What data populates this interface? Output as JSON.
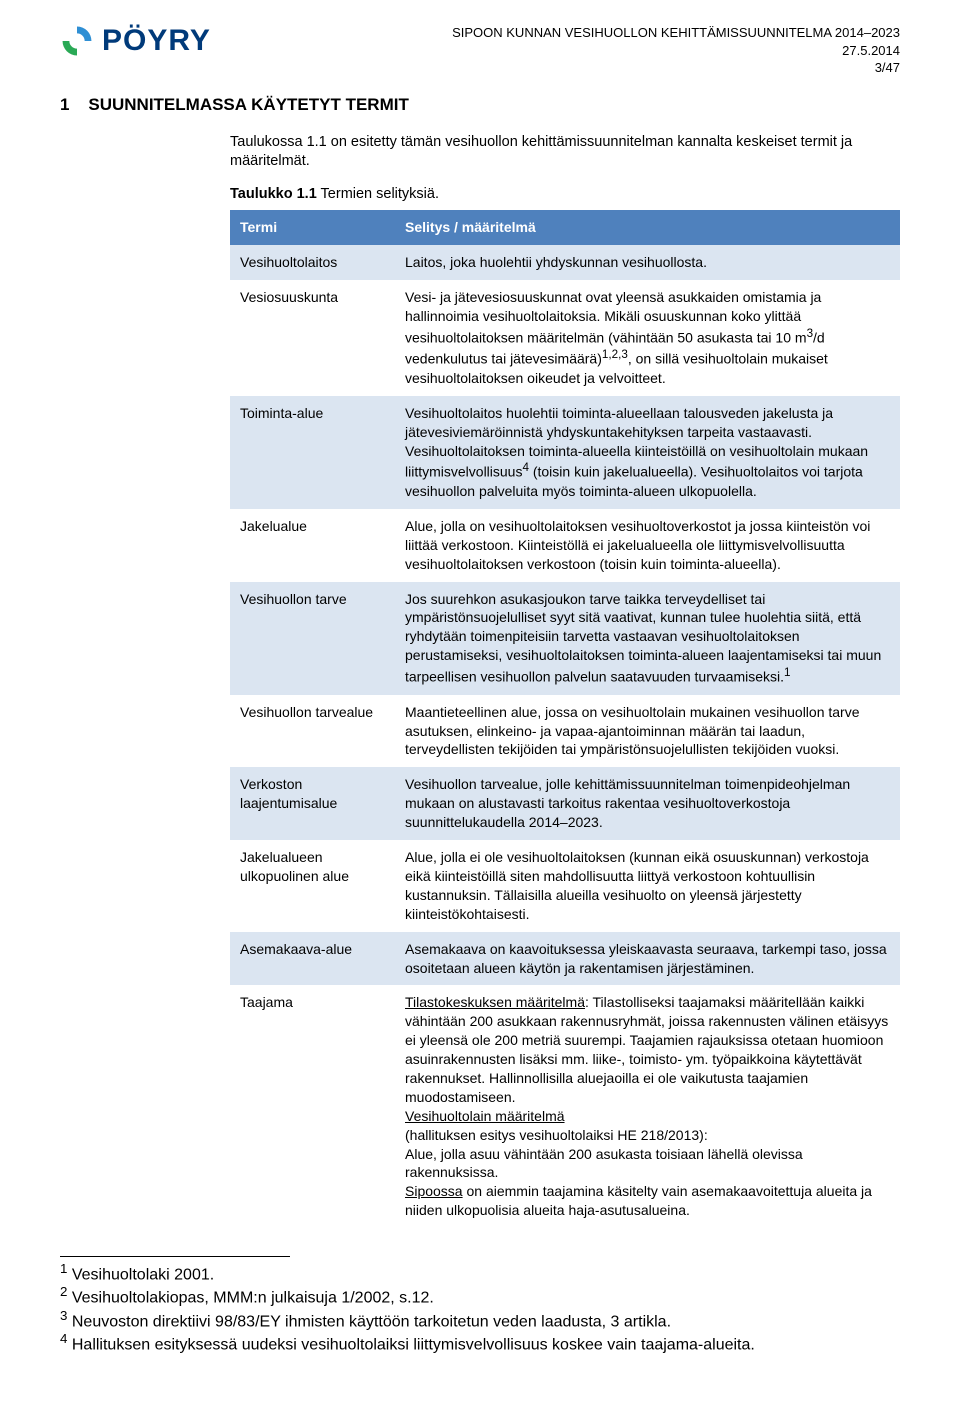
{
  "header": {
    "doc_title": "SIPOON KUNNAN VESIHUOLLON KEHITTÄMISSUUNNITELMA 2014–2023",
    "doc_date": "27.5.2014",
    "page_no": "3/47",
    "logo_text": "PÖYRY",
    "logo_colors": {
      "top": "#2f8fd4",
      "bottom": "#2aa956",
      "text": "#003a7a"
    }
  },
  "section": {
    "number": "1",
    "title": "SUUNNITELMASSA KÄYTETYT TERMIT"
  },
  "intro": "Taulukossa 1.1 on esitetty tämän vesihuollon kehittämissuunnitelman kannalta keskeiset termit ja määritelmät.",
  "caption": {
    "label": "Taulukko 1.1",
    "text": "Termien selityksiä."
  },
  "table_style": {
    "header_bg": "#4f81bd",
    "header_fg": "#ffffff",
    "row_alt_bg": "#dbe5f1",
    "row_bg": "#ffffff",
    "border_color": "#4f81bd"
  },
  "columns": [
    "Termi",
    "Selitys / määritelmä"
  ],
  "rows": [
    {
      "term": "Vesihuoltolaitos",
      "def_html": "Laitos, joka huolehtii yhdyskunnan vesihuollosta."
    },
    {
      "term": "Vesiosuuskunta",
      "def_html": "Vesi- ja jätevesiosuuskunnat ovat yleensä asukkaiden omistamia ja hallinnoimia vesihuoltolaitoksia. Mikäli osuuskunnan koko ylittää vesihuoltolaitoksen määritelmän (vähintään 50 asukasta tai 10 m<sup>3</sup>/d vedenkulutus tai jätevesimäärä)<sup>1,2,3</sup>, on sillä vesihuoltolain mukaiset vesihuoltolaitoksen oikeudet ja velvoitteet."
    },
    {
      "term": "Toiminta-alue",
      "def_html": "Vesihuoltolaitos huolehtii toiminta-alueellaan talousveden jakelusta ja jätevesiviemäröinnistä yhdyskuntakehityksen tarpeita vastaavasti. Vesihuoltolaitoksen toiminta-alueella kiinteistöillä on vesihuoltolain mukaan liittymisvelvollisuus<sup>4</sup> (toisin kuin jakelualueella). Vesihuoltolaitos voi tarjota vesihuollon palveluita myös toiminta-alueen ulkopuolella."
    },
    {
      "term": "Jakelualue",
      "def_html": "Alue, jolla on vesihuoltolaitoksen vesihuoltoverkostot ja jossa kiinteistön voi liittää verkostoon. Kiinteistöllä ei jakelualueella ole liittymisvelvollisuutta vesihuoltolaitoksen verkostoon (toisin kuin toiminta-alueella)."
    },
    {
      "term": "Vesihuollon tarve",
      "def_html": "Jos suurehkon asukasjoukon tarve taikka terveydelliset tai ympäristönsuojelulliset syyt sitä vaativat, kunnan tulee huolehtia siitä, että ryhdytään toimenpiteisiin tarvetta vastaavan vesihuoltolaitoksen perustamiseksi, vesihuoltolaitoksen toiminta-alueen laajentamiseksi tai muun tarpeellisen vesihuollon palvelun saatavuuden turvaamiseksi.<sup>1</sup>"
    },
    {
      "term": "Vesihuollon tarvealue",
      "def_html": "Maantieteellinen alue, jossa on vesihuoltolain mukainen vesihuollon tarve asutuksen, elinkeino- ja vapaa-ajantoiminnan määrän tai laadun, terveydellisten tekijöiden tai ympäristönsuojelullisten tekijöiden vuoksi."
    },
    {
      "term": "Verkoston laajentumisalue",
      "def_html": "Vesihuollon tarvealue, jolle kehittämissuunnitelman toimenpideohjelman mukaan on alustavasti tarkoitus rakentaa vesihuoltoverkostoja suunnittelukaudella 2014–2023."
    },
    {
      "term": "Jakelualueen ulkopuolinen alue",
      "def_html": "Alue, jolla ei ole vesihuoltolaitoksen (kunnan eikä osuuskunnan) verkostoja eikä kiinteistöillä siten mahdollisuutta liittyä verkostoon kohtuullisin kustannuksin. Tällaisilla alueilla vesihuolto on yleensä järjestetty kiinteistökohtaisesti."
    },
    {
      "term": "Asemakaava-alue",
      "def_html": "Asemakaava on kaavoituksessa yleiskaavasta seuraava, tarkempi taso, jossa osoitetaan alueen käytön ja rakentamisen järjestäminen."
    },
    {
      "term": "Taajama",
      "def_html": "<span class=\"u\">Tilastokeskuksen määritelmä</span>: Tilastolliseksi taajamaksi määritellään kaikki vähintään 200 asukkaan rakennusryhmät, joissa rakennusten välinen etäisyys ei yleensä ole 200 metriä suurempi. Taajamien rajauksissa otetaan huomioon asuinrakennusten lisäksi mm. liike-, toimisto- ym. työpaikkoina käytettävät rakennukset. Hallinnollisilla aluejaoilla ei ole vaikutusta taajamien muodostamiseen.<br><span class=\"u\">Vesihuoltolain määritelmä</span><br>(hallituksen esitys vesihuoltolaiksi HE 218/2013):<br>Alue, jolla asuu vähintään 200 asukasta toisiaan lähellä olevissa rakennuksissa.<br><span class=\"u\">Sipoossa</span> on aiemmin taajamina käsitelty vain asemakaavoitettuja alueita ja niiden ulkopuolisia alueita haja-asutusalueina."
    }
  ],
  "footnotes": [
    "Vesihuoltolaki 2001.",
    "Vesihuoltolakiopas, MMM:n julkaisuja 1/2002, s.12.",
    "Neuvoston direktiivi 98/83/EY ihmisten käyttöön tarkoitetun veden laadusta, 3 artikla.",
    "Hallituksen esityksessä uudeksi vesihuoltolaiksi liittymisvelvollisuus koskee vain taajama-alueita."
  ]
}
